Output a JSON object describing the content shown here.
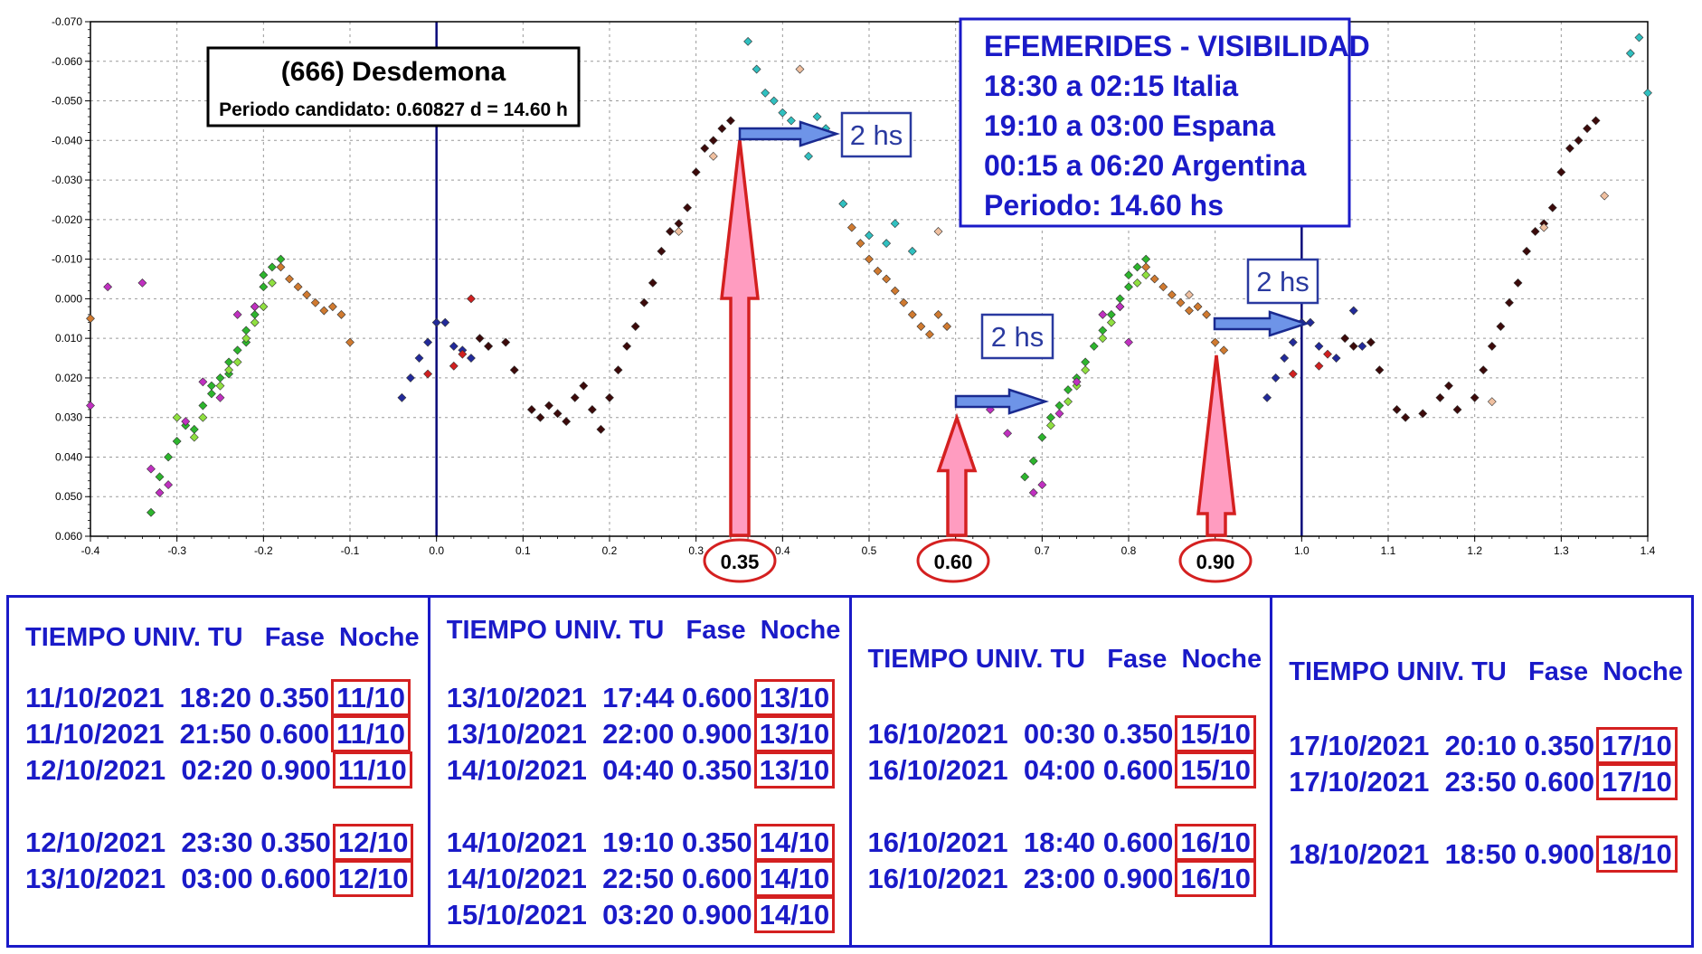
{
  "chart_data": {
    "type": "scatter",
    "title": "(666) Desdemona",
    "subtitle": "Periodo candidato: 0.60827 d = 14.60 h",
    "xlim": [
      -0.4,
      1.4
    ],
    "ylim": [
      -0.07,
      0.06
    ],
    "y_inverted": true,
    "x_ticks": [
      "-0.4",
      "-0.3",
      "-0.2",
      "-0.1",
      "0.0",
      "0.1",
      "0.2",
      "0.3",
      "0.4",
      "0.5",
      "0.6",
      "0.7",
      "0.8",
      "0.9",
      "1.0",
      "1.1",
      "1.2",
      "1.3",
      "1.4"
    ],
    "y_ticks": [
      "-0.070",
      "-0.060",
      "-0.050",
      "-0.040",
      "-0.030",
      "-0.020",
      "-0.010",
      "0.000",
      "0.010",
      "0.020",
      "0.030",
      "0.040",
      "0.050",
      "0.060"
    ],
    "grid": true,
    "series": [
      {
        "color": "#2db52d",
        "points": [
          [
            -0.33,
            0.054
          ],
          [
            -0.32,
            0.045
          ],
          [
            -0.31,
            0.04
          ],
          [
            -0.3,
            0.036
          ],
          [
            -0.29,
            0.032
          ],
          [
            -0.28,
            0.033
          ],
          [
            -0.27,
            0.027
          ],
          [
            -0.26,
            0.024
          ],
          [
            -0.26,
            0.022
          ],
          [
            -0.25,
            0.02
          ],
          [
            -0.24,
            0.019
          ],
          [
            -0.24,
            0.016
          ],
          [
            -0.23,
            0.013
          ],
          [
            -0.22,
            0.011
          ],
          [
            -0.22,
            0.008
          ],
          [
            -0.21,
            0.004
          ],
          [
            -0.21,
            0.002
          ],
          [
            -0.2,
            -0.003
          ],
          [
            -0.2,
            -0.006
          ],
          [
            -0.19,
            -0.008
          ],
          [
            -0.18,
            -0.01
          ],
          [
            0.68,
            0.045
          ],
          [
            0.69,
            0.041
          ],
          [
            0.7,
            0.035
          ],
          [
            0.71,
            0.03
          ],
          [
            0.72,
            0.027
          ],
          [
            0.73,
            0.023
          ],
          [
            0.74,
            0.02
          ],
          [
            0.75,
            0.016
          ],
          [
            0.76,
            0.012
          ],
          [
            0.77,
            0.008
          ],
          [
            0.78,
            0.004
          ],
          [
            0.79,
            0.0
          ],
          [
            0.8,
            -0.003
          ],
          [
            0.8,
            -0.006
          ],
          [
            0.81,
            -0.008
          ],
          [
            0.82,
            -0.01
          ]
        ]
      },
      {
        "color": "#90e040",
        "points": [
          [
            -0.3,
            0.03
          ],
          [
            -0.28,
            0.035
          ],
          [
            -0.27,
            0.03
          ],
          [
            -0.25,
            0.022
          ],
          [
            -0.24,
            0.018
          ],
          [
            -0.23,
            0.016
          ],
          [
            -0.22,
            0.01
          ],
          [
            -0.21,
            0.006
          ],
          [
            -0.2,
            0.002
          ],
          [
            -0.19,
            -0.004
          ],
          [
            0.71,
            0.032
          ],
          [
            0.73,
            0.026
          ],
          [
            0.74,
            0.022
          ],
          [
            0.75,
            0.018
          ],
          [
            0.77,
            0.01
          ],
          [
            0.78,
            0.006
          ],
          [
            0.79,
            0.002
          ],
          [
            0.81,
            -0.004
          ],
          [
            0.82,
            -0.006
          ]
        ]
      },
      {
        "color": "#c030c0",
        "points": [
          [
            -0.4,
            0.027
          ],
          [
            -0.38,
            -0.003
          ],
          [
            -0.34,
            -0.004
          ],
          [
            -0.33,
            0.043
          ],
          [
            -0.32,
            0.049
          ],
          [
            -0.31,
            0.047
          ],
          [
            -0.29,
            0.031
          ],
          [
            -0.27,
            0.021
          ],
          [
            -0.25,
            0.025
          ],
          [
            -0.23,
            0.004
          ],
          [
            -0.21,
            0.002
          ],
          [
            0.64,
            0.028
          ],
          [
            0.66,
            0.034
          ],
          [
            0.69,
            0.049
          ],
          [
            0.7,
            0.047
          ],
          [
            0.72,
            0.029
          ],
          [
            0.74,
            0.021
          ],
          [
            0.77,
            0.004
          ],
          [
            0.79,
            0.002
          ],
          [
            0.8,
            0.011
          ]
        ]
      },
      {
        "color": "#222a9a",
        "points": [
          [
            -0.04,
            0.025
          ],
          [
            -0.03,
            0.02
          ],
          [
            -0.02,
            0.015
          ],
          [
            -0.01,
            0.011
          ],
          [
            0.0,
            0.006
          ],
          [
            0.01,
            0.006
          ],
          [
            0.02,
            0.012
          ],
          [
            0.03,
            0.013
          ],
          [
            0.04,
            0.015
          ],
          [
            0.06,
            0.012
          ],
          [
            0.96,
            0.025
          ],
          [
            0.97,
            0.02
          ],
          [
            0.98,
            0.015
          ],
          [
            0.99,
            0.011
          ],
          [
            1.0,
            0.006
          ],
          [
            1.01,
            0.006
          ],
          [
            1.02,
            0.012
          ],
          [
            1.04,
            0.015
          ],
          [
            1.06,
            0.003
          ],
          [
            1.07,
            0.012
          ]
        ]
      },
      {
        "color": "#3c0a0a",
        "points": [
          [
            0.05,
            0.01
          ],
          [
            0.06,
            0.012
          ],
          [
            0.08,
            0.011
          ],
          [
            0.09,
            0.018
          ],
          [
            0.11,
            0.028
          ],
          [
            0.12,
            0.03
          ],
          [
            0.13,
            0.027
          ],
          [
            0.14,
            0.029
          ],
          [
            0.15,
            0.031
          ],
          [
            0.16,
            0.025
          ],
          [
            0.17,
            0.022
          ],
          [
            0.18,
            0.028
          ],
          [
            0.19,
            0.033
          ],
          [
            0.2,
            0.025
          ],
          [
            0.21,
            0.018
          ],
          [
            0.22,
            0.012
          ],
          [
            0.23,
            0.007
          ],
          [
            0.24,
            0.001
          ],
          [
            0.25,
            -0.004
          ],
          [
            0.26,
            -0.012
          ],
          [
            0.27,
            -0.017
          ],
          [
            0.28,
            -0.019
          ],
          [
            0.29,
            -0.023
          ],
          [
            0.3,
            -0.032
          ],
          [
            0.31,
            -0.038
          ],
          [
            0.32,
            -0.04
          ],
          [
            0.33,
            -0.043
          ],
          [
            0.34,
            -0.045
          ],
          [
            1.05,
            0.01
          ],
          [
            1.06,
            0.012
          ],
          [
            1.08,
            0.011
          ],
          [
            1.09,
            0.018
          ],
          [
            1.11,
            0.028
          ],
          [
            1.12,
            0.03
          ],
          [
            1.14,
            0.029
          ],
          [
            1.16,
            0.025
          ],
          [
            1.17,
            0.022
          ],
          [
            1.18,
            0.028
          ],
          [
            1.2,
            0.025
          ],
          [
            1.21,
            0.018
          ],
          [
            1.22,
            0.012
          ],
          [
            1.23,
            0.007
          ],
          [
            1.24,
            0.001
          ],
          [
            1.25,
            -0.004
          ],
          [
            1.26,
            -0.012
          ],
          [
            1.27,
            -0.017
          ],
          [
            1.28,
            -0.019
          ],
          [
            1.29,
            -0.023
          ],
          [
            1.3,
            -0.032
          ],
          [
            1.31,
            -0.038
          ],
          [
            1.32,
            -0.04
          ],
          [
            1.33,
            -0.043
          ],
          [
            1.34,
            -0.045
          ]
        ]
      },
      {
        "color": "#d02020",
        "points": [
          [
            -0.01,
            0.019
          ],
          [
            0.02,
            0.017
          ],
          [
            0.03,
            0.014
          ],
          [
            0.04,
            0.0
          ],
          [
            0.99,
            0.019
          ],
          [
            1.02,
            0.017
          ],
          [
            1.03,
            0.014
          ]
        ]
      },
      {
        "color": "#d07a30",
        "points": [
          [
            -0.4,
            0.005
          ],
          [
            -0.18,
            -0.008
          ],
          [
            -0.17,
            -0.005
          ],
          [
            -0.16,
            -0.003
          ],
          [
            -0.15,
            -0.001
          ],
          [
            -0.14,
            0.001
          ],
          [
            -0.13,
            0.003
          ],
          [
            -0.12,
            0.002
          ],
          [
            -0.11,
            0.004
          ],
          [
            -0.1,
            0.011
          ],
          [
            0.47,
            -0.024
          ],
          [
            0.48,
            -0.018
          ],
          [
            0.49,
            -0.014
          ],
          [
            0.5,
            -0.01
          ],
          [
            0.51,
            -0.007
          ],
          [
            0.52,
            -0.005
          ],
          [
            0.53,
            -0.002
          ],
          [
            0.54,
            0.001
          ],
          [
            0.55,
            0.004
          ],
          [
            0.56,
            0.007
          ],
          [
            0.57,
            0.009
          ],
          [
            0.58,
            0.004
          ],
          [
            0.59,
            0.007
          ],
          [
            0.82,
            -0.008
          ],
          [
            0.83,
            -0.005
          ],
          [
            0.84,
            -0.003
          ],
          [
            0.85,
            -0.001
          ],
          [
            0.86,
            0.001
          ],
          [
            0.87,
            0.003
          ],
          [
            0.88,
            0.002
          ],
          [
            0.89,
            0.004
          ],
          [
            0.9,
            0.011
          ],
          [
            0.91,
            0.013
          ]
        ]
      },
      {
        "color": "#30c0c0",
        "points": [
          [
            0.36,
            -0.065
          ],
          [
            0.37,
            -0.058
          ],
          [
            0.38,
            -0.052
          ],
          [
            0.39,
            -0.05
          ],
          [
            0.4,
            -0.047
          ],
          [
            0.41,
            -0.045
          ],
          [
            0.42,
            -0.041
          ],
          [
            0.43,
            -0.036
          ],
          [
            0.44,
            -0.046
          ],
          [
            0.45,
            -0.043
          ],
          [
            0.47,
            -0.024
          ],
          [
            0.5,
            -0.016
          ],
          [
            0.52,
            -0.014
          ],
          [
            0.53,
            -0.019
          ],
          [
            0.55,
            -0.012
          ],
          [
            1.38,
            -0.062
          ],
          [
            1.39,
            -0.066
          ],
          [
            1.4,
            -0.052
          ]
        ]
      },
      {
        "color": "#f0c0a0",
        "points": [
          [
            0.28,
            -0.017
          ],
          [
            0.32,
            -0.036
          ],
          [
            0.42,
            -0.058
          ],
          [
            0.58,
            -0.017
          ],
          [
            0.87,
            -0.001
          ],
          [
            1.22,
            0.026
          ],
          [
            1.28,
            -0.018
          ],
          [
            1.35,
            -0.026
          ]
        ]
      }
    ]
  },
  "info_box": {
    "title": "(666) Desdemona",
    "subtitle": "Periodo candidato: 0.60827 d = 14.60 h"
  },
  "efemerides": {
    "title": "EFEMERIDES - VISIBILIDAD",
    "lines": [
      "18:30 a 02:15 Italia",
      "19:10 a 03:00 Espana",
      "00:15 a 06:20 Argentina",
      "Periodo: 14.60 hs"
    ]
  },
  "callouts": [
    "2 hs",
    "2 hs",
    "2 hs"
  ],
  "phase_markers": [
    "0.35",
    "0.60",
    "0.90"
  ],
  "colors": {
    "accent_blue": "#1a1ac8",
    "marker_red": "#d42020",
    "arrow_pink": "#ff9cc0",
    "arrow_blue": "#6e94e8"
  },
  "tables": [
    {
      "header": "TIEMPO UNIV. TU   Fase  Noche",
      "groups": [
        [
          {
            "tu": "11/10/2021  18:20",
            "fase": "0.350",
            "noche": "11/10"
          },
          {
            "tu": "11/10/2021  21:50",
            "fase": "0.600",
            "noche": "11/10"
          },
          {
            "tu": "12/10/2021  02:20",
            "fase": "0.900",
            "noche": "11/10"
          }
        ],
        [
          {
            "tu": "12/10/2021  23:30",
            "fase": "0.350",
            "noche": "12/10"
          },
          {
            "tu": "13/10/2021  03:00",
            "fase": "0.600",
            "noche": "12/10"
          }
        ]
      ]
    },
    {
      "header": "TIEMPO UNIV. TU   Fase  Noche",
      "groups": [
        [
          {
            "tu": "13/10/2021  17:44",
            "fase": "0.600",
            "noche": "13/10"
          },
          {
            "tu": "13/10/2021  22:00",
            "fase": "0.900",
            "noche": "13/10"
          },
          {
            "tu": "14/10/2021  04:40",
            "fase": "0.350",
            "noche": "13/10"
          }
        ],
        [
          {
            "tu": "14/10/2021  19:10",
            "fase": "0.350",
            "noche": "14/10"
          },
          {
            "tu": "14/10/2021  22:50",
            "fase": "0.600",
            "noche": "14/10"
          },
          {
            "tu": "15/10/2021  03:20",
            "fase": "0.900",
            "noche": "14/10"
          }
        ]
      ]
    },
    {
      "header": "TIEMPO UNIV. TU   Fase  Noche",
      "groups": [
        [
          {
            "tu": "16/10/2021  00:30",
            "fase": "0.350",
            "noche": "15/10"
          },
          {
            "tu": "16/10/2021  04:00",
            "fase": "0.600",
            "noche": "15/10"
          }
        ],
        [
          {
            "tu": "16/10/2021  18:40",
            "fase": "0.600",
            "noche": "16/10"
          },
          {
            "tu": "16/10/2021  23:00",
            "fase": "0.900",
            "noche": "16/10"
          }
        ]
      ]
    },
    {
      "header": "TIEMPO UNIV. TU   Fase  Noche",
      "groups": [
        [
          {
            "tu": "17/10/2021  20:10",
            "fase": "0.350",
            "noche": "17/10"
          },
          {
            "tu": "17/10/2021  23:50",
            "fase": "0.600",
            "noche": "17/10"
          }
        ],
        [
          {
            "tu": "18/10/2021  18:50",
            "fase": "0.900",
            "noche": "18/10"
          }
        ]
      ]
    }
  ]
}
